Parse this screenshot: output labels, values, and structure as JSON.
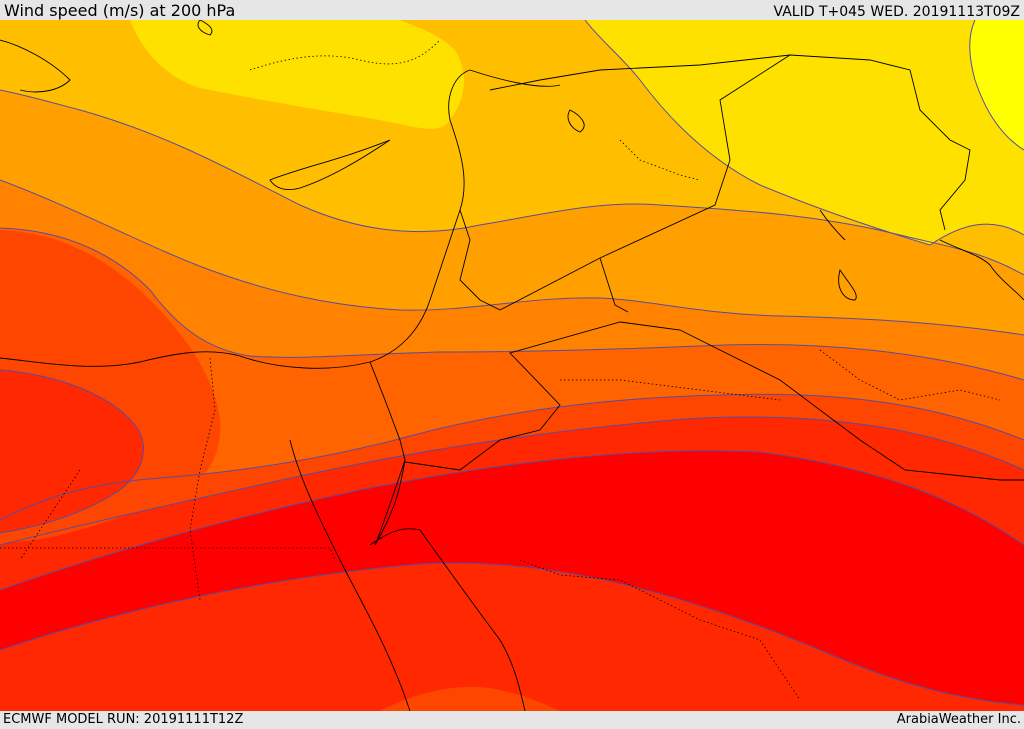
{
  "header": {
    "title": "Wind speed (m/s) at 200 hPa",
    "valid_time": "VALID T+045 WED. 20191113T09Z"
  },
  "footer": {
    "model_run": "ECMWF MODEL RUN: 20191111T12Z",
    "credit": "ArabiaWeather Inc."
  },
  "colors": {
    "band_1": "#ffff00",
    "band_2": "#ffe100",
    "band_3": "#ffbf00",
    "band_4": "#ffa000",
    "band_5": "#ff8200",
    "band_6": "#ff6400",
    "band_7": "#ff4600",
    "band_8": "#ff2800",
    "band_9": "#ff1400",
    "band_10": "#ff0000",
    "contour_line": "#5a4ba0",
    "border_line": "#000000"
  }
}
